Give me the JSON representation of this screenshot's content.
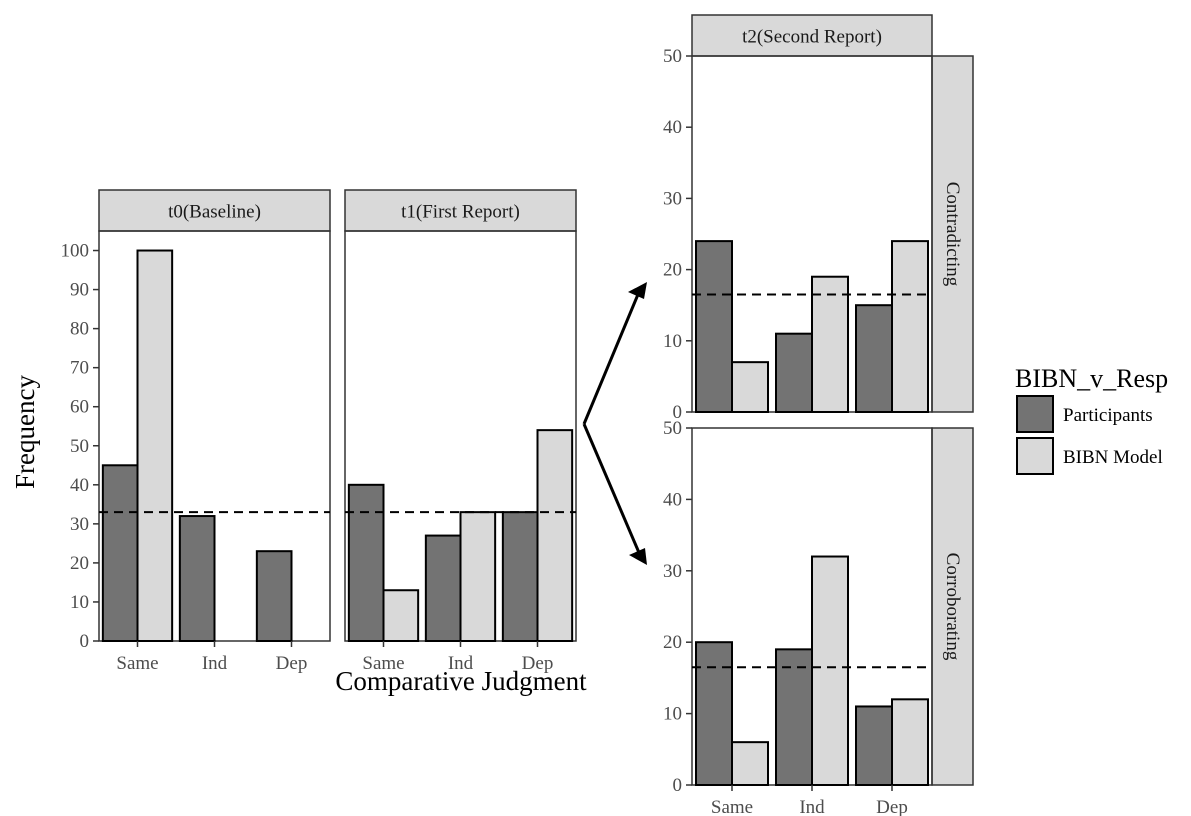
{
  "figure": {
    "ylabel": "Frequency",
    "xlabel": "Comparative Judgment",
    "legend": {
      "title": "BIBN_v_Resp",
      "position": "right",
      "entries": [
        {
          "label": "Participants",
          "color": "#737373"
        },
        {
          "label": "BIBN Model",
          "color": "#d9d9d9"
        }
      ]
    },
    "strip_fill": "#d9d9d9"
  },
  "chart_data": [
    {
      "type": "bar",
      "panel": "t0(Baseline)",
      "categories": [
        "Same",
        "Ind",
        "Dep"
      ],
      "series": [
        {
          "name": "Participants",
          "values": [
            45,
            32,
            23
          ]
        },
        {
          "name": "BIBN Model",
          "values": [
            100,
            0,
            0
          ]
        }
      ],
      "reference_line": 33,
      "ylim": [
        0,
        105
      ],
      "yticks": [
        0,
        10,
        20,
        30,
        40,
        50,
        60,
        70,
        80,
        90,
        100
      ],
      "grid": false
    },
    {
      "type": "bar",
      "panel": "t1(First Report)",
      "categories": [
        "Same",
        "Ind",
        "Dep"
      ],
      "series": [
        {
          "name": "Participants",
          "values": [
            40,
            27,
            33
          ]
        },
        {
          "name": "BIBN Model",
          "values": [
            13,
            33,
            54
          ]
        }
      ],
      "reference_line": 33,
      "ylim": [
        0,
        105
      ],
      "grid": false
    },
    {
      "type": "bar",
      "panel": "t2(Second Report)",
      "facet": "Contradicting",
      "categories": [
        "Same",
        "Ind",
        "Dep"
      ],
      "series": [
        {
          "name": "Participants",
          "values": [
            24,
            11,
            15
          ]
        },
        {
          "name": "BIBN Model",
          "values": [
            7,
            19,
            24
          ]
        }
      ],
      "reference_line": 16.5,
      "ylim": [
        0,
        50
      ],
      "yticks": [
        0,
        10,
        20,
        30,
        40,
        50
      ],
      "grid": false
    },
    {
      "type": "bar",
      "panel": "t2(Second Report)",
      "facet": "Corroborating",
      "categories": [
        "Same",
        "Ind",
        "Dep"
      ],
      "series": [
        {
          "name": "Participants",
          "values": [
            20,
            19,
            11
          ]
        },
        {
          "name": "BIBN Model",
          "values": [
            6,
            32,
            12
          ]
        }
      ],
      "reference_line": 16.5,
      "ylim": [
        0,
        50
      ],
      "yticks": [
        0,
        10,
        20,
        30,
        40,
        50
      ],
      "grid": false
    }
  ]
}
